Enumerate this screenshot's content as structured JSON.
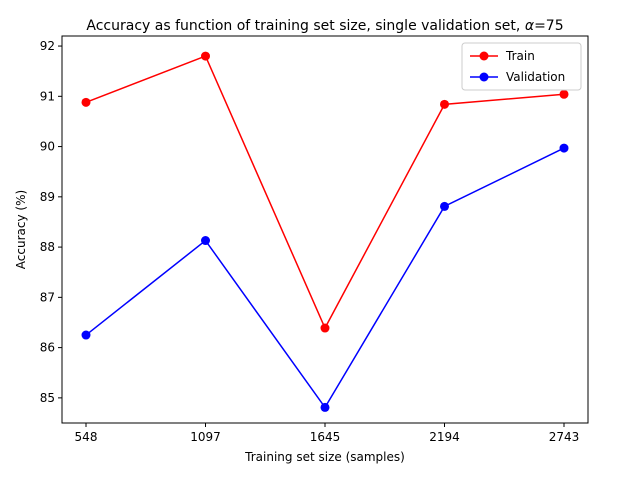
{
  "chart_data": {
    "type": "line",
    "title_main": "Accuracy as function of training set size, single validation set, ",
    "title_alpha": "α",
    "title_suffix": "=75",
    "xlabel": "Training set size (samples)",
    "ylabel": "Accuracy (%)",
    "categories": [
      "548",
      "1097",
      "1645",
      "2194",
      "2743"
    ],
    "yticks": [
      "85",
      "86",
      "87",
      "88",
      "89",
      "90",
      "91",
      "92"
    ],
    "ylim": [
      84.5,
      92.2
    ],
    "grid": false,
    "legend_position": "upper right",
    "series": [
      {
        "name": "Train",
        "color": "#ff0000",
        "values": [
          90.88,
          91.8,
          86.39,
          90.84,
          91.04
        ]
      },
      {
        "name": "Validation",
        "color": "#0000ff",
        "values": [
          86.25,
          88.13,
          84.81,
          88.81,
          89.97
        ]
      }
    ]
  }
}
